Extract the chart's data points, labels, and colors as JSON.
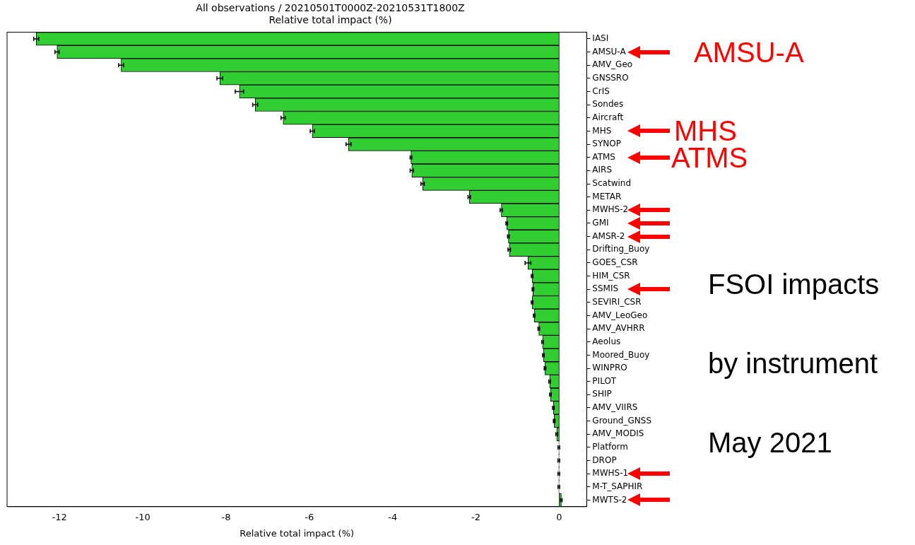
{
  "chart_data": {
    "type": "bar",
    "orientation": "horizontal",
    "title": "All observations / 20210501T0000Z-20210531T1800Z",
    "subtitle": "Relative total impact (%)",
    "xlabel": "Relative total impact (%)",
    "categories": [
      "IASI",
      "AMSU-A",
      "AMV_Geo",
      "GNSSRO",
      "CrIS",
      "Sondes",
      "Aircraft",
      "MHS",
      "SYNOP",
      "ATMS",
      "AIRS",
      "Scatwind",
      "METAR",
      "MWHS-2",
      "GMI",
      "AMSR-2",
      "Drifting_Buoy",
      "GOES_CSR",
      "HIM_CSR",
      "SSMIS",
      "SEVIRI_CSR",
      "AMV_LeoGeo",
      "AMV_AVHRR",
      "Aeolus",
      "Moored_Buoy",
      "WINPRO",
      "PILOT",
      "SHIP",
      "AMV_VIIRS",
      "Ground_GNSS",
      "AMV_MODIS",
      "Platform",
      "DROP",
      "MWHS-1",
      "M-T_SAPHIR",
      "MWTS-2"
    ],
    "values": [
      -12.56,
      -12.06,
      -10.52,
      -8.15,
      -7.68,
      -7.3,
      -6.63,
      -5.93,
      -5.06,
      -3.56,
      -3.54,
      -3.28,
      -2.16,
      -1.39,
      -1.26,
      -1.22,
      -1.2,
      -0.75,
      -0.65,
      -0.63,
      -0.65,
      -0.6,
      -0.49,
      -0.4,
      -0.38,
      -0.34,
      -0.23,
      -0.21,
      -0.14,
      -0.12,
      -0.06,
      -0.01,
      -0.01,
      -0.01,
      -0.01,
      0.05
    ],
    "errors": [
      0.06,
      0.05,
      0.06,
      0.07,
      0.1,
      0.06,
      0.05,
      0.05,
      0.06,
      0.02,
      0.04,
      0.04,
      0.03,
      0.03,
      0.02,
      0.02,
      0.03,
      0.07,
      0.02,
      0.02,
      0.02,
      0.02,
      0.02,
      0.02,
      0.02,
      0.02,
      0.02,
      0.02,
      0.02,
      0.02,
      0.02,
      0.02,
      0.02,
      0.02,
      0.02,
      0.02
    ],
    "color": "#32cd32",
    "xlim": [
      -13.26,
      0.66
    ],
    "xticks": [
      -12,
      -10,
      -8,
      -6,
      -4,
      -2,
      0
    ],
    "grid": false,
    "legend": false,
    "annotations": [
      "AMSU-A",
      "MHS",
      "ATMS",
      "FSOI impacts",
      "by instrument",
      "May 2021"
    ]
  }
}
